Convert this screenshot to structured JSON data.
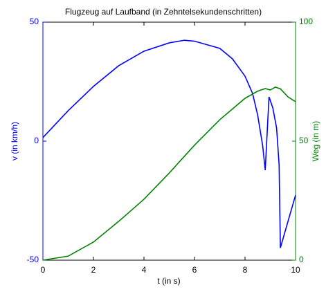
{
  "chart_data": {
    "type": "line",
    "title": "Flugzeug auf Laufband (in Zehntelsekundenschritten)",
    "xlabel": "t (in s)",
    "ylabel": "v (in km/h)",
    "y2label": "Weg (in m)",
    "xlim": [
      0,
      10
    ],
    "xticks": [
      0,
      2,
      4,
      6,
      8,
      10
    ],
    "ylim": [
      -50,
      50
    ],
    "yticks": [
      -50,
      0,
      50
    ],
    "y2lim": [
      0,
      100
    ],
    "y2ticks": [
      0,
      50,
      100
    ],
    "series": [
      {
        "name": "v",
        "color": "#0000ff",
        "x": [
          0,
          1,
          2,
          3,
          4,
          5,
          5.6,
          6,
          7,
          7.5,
          8,
          8.3,
          8.5,
          8.7,
          8.8,
          8.95,
          9.1,
          9.25,
          9.35,
          9.4,
          10
        ],
        "values": [
          1.5,
          12.8,
          23,
          31.7,
          37.8,
          41.3,
          42.4,
          42,
          39,
          34.6,
          27.3,
          20,
          11,
          -2,
          -12.2,
          18.6,
          14,
          5.5,
          -10,
          -44.8,
          -22.7
        ]
      },
      {
        "name": "Weg",
        "color": "#008000",
        "axis": "y2",
        "x": [
          0,
          1,
          2,
          3,
          4,
          5,
          6,
          7,
          8,
          8.5,
          8.8,
          9,
          9.2,
          9.4,
          9.7,
          10
        ],
        "values": [
          0,
          1.7,
          7.6,
          16.3,
          25.6,
          36.6,
          48.3,
          59,
          68,
          71,
          72.1,
          71.5,
          72.7,
          72,
          68.6,
          66.6
        ]
      }
    ]
  }
}
